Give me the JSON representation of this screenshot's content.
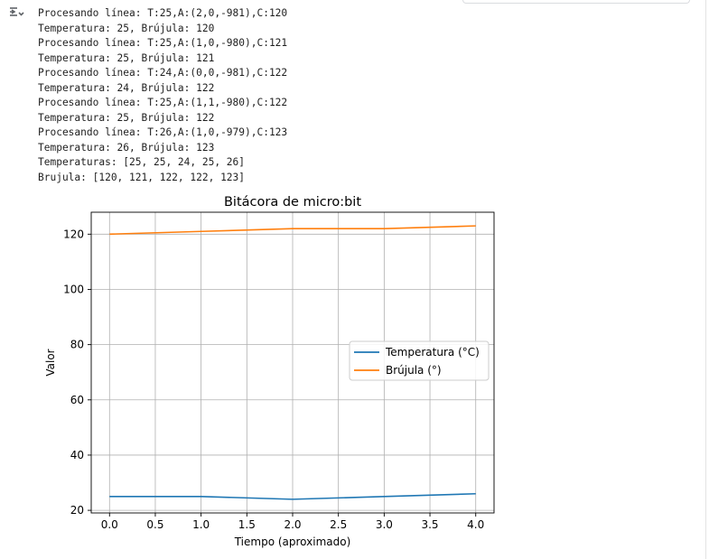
{
  "output": {
    "lines": [
      "Procesando línea: T:25,A:(2,0,-981),C:120",
      "Temperatura: 25, Brújula: 120",
      "Procesando línea: T:25,A:(1,0,-980),C:121",
      "Temperatura: 25, Brújula: 121",
      "Procesando línea: T:24,A:(0,0,-981),C:122",
      "Temperatura: 24, Brújula: 122",
      "Procesando línea: T:25,A:(1,1,-980),C:122",
      "Temperatura: 25, Brújula: 122",
      "Procesando línea: T:26,A:(1,0,-979),C:123",
      "Temperatura: 26, Brújula: 123",
      "Temperaturas: [25, 25, 24, 25, 26]",
      "Brujula: [120, 121, 122, 122, 123]"
    ],
    "toggle_icon": "output-collapse-icon"
  },
  "chart_data": {
    "type": "line",
    "title": "Bitácora de micro:bit",
    "xlabel": "Tiempo (aproximado)",
    "ylabel": "Valor",
    "x": [
      0,
      1,
      2,
      3,
      4
    ],
    "series": [
      {
        "name": "Temperatura (°C)",
        "values": [
          25,
          25,
          24,
          25,
          26
        ],
        "color": "#1f77b4"
      },
      {
        "name": "Brújula (°)",
        "values": [
          120,
          121,
          122,
          122,
          123
        ],
        "color": "#ff7f0e"
      }
    ],
    "xlim": [
      -0.2,
      4.2
    ],
    "ylim": [
      19.05,
      127.95
    ],
    "xticks": [
      "0.0",
      "0.5",
      "1.0",
      "1.5",
      "2.0",
      "2.5",
      "3.0",
      "3.5",
      "4.0"
    ],
    "yticks": [
      "20",
      "40",
      "60",
      "80",
      "100",
      "120"
    ],
    "grid": true,
    "legend_position": "center-right"
  }
}
